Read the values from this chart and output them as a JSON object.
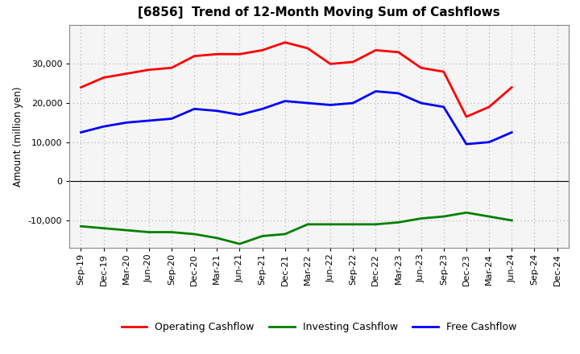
{
  "title": "[6856]  Trend of 12-Month Moving Sum of Cashflows",
  "ylabel": "Amount (million yen)",
  "xlabels": [
    "Sep-19",
    "Dec-19",
    "Mar-20",
    "Jun-20",
    "Sep-20",
    "Dec-20",
    "Mar-21",
    "Jun-21",
    "Sep-21",
    "Dec-21",
    "Mar-22",
    "Jun-22",
    "Sep-22",
    "Dec-22",
    "Mar-23",
    "Jun-23",
    "Sep-23",
    "Dec-23",
    "Mar-24",
    "Jun-24",
    "Sep-24",
    "Dec-24"
  ],
  "operating": [
    24000,
    26500,
    27500,
    28500,
    29000,
    32000,
    32500,
    32500,
    33500,
    35500,
    34000,
    30000,
    30500,
    33500,
    33000,
    29000,
    28000,
    16500,
    19000,
    24000,
    null,
    null
  ],
  "investing": [
    -11500,
    -12000,
    -12500,
    -13000,
    -13000,
    -13500,
    -14500,
    -16000,
    -14000,
    -13500,
    -11000,
    -11000,
    -11000,
    -11000,
    -10500,
    -9500,
    -9000,
    -8000,
    -9000,
    -10000,
    null,
    null
  ],
  "free": [
    12500,
    14000,
    15000,
    15500,
    16000,
    18500,
    18000,
    17000,
    18500,
    20500,
    20000,
    19500,
    20000,
    23000,
    22500,
    20000,
    19000,
    9500,
    10000,
    12500,
    null,
    null
  ],
  "ylim": [
    -17000,
    40000
  ],
  "yticks": [
    -10000,
    0,
    10000,
    20000,
    30000
  ],
  "colors": {
    "operating": "#ff0000",
    "investing": "#008000",
    "free": "#0000ff"
  },
  "legend": [
    "Operating Cashflow",
    "Investing Cashflow",
    "Free Cashflow"
  ],
  "background": "#ffffff",
  "plot_background": "#f5f5f5",
  "grid_color": "#aaaaaa",
  "linewidth": 2.0,
  "title_fontsize": 11,
  "label_fontsize": 8.5,
  "tick_fontsize": 8
}
